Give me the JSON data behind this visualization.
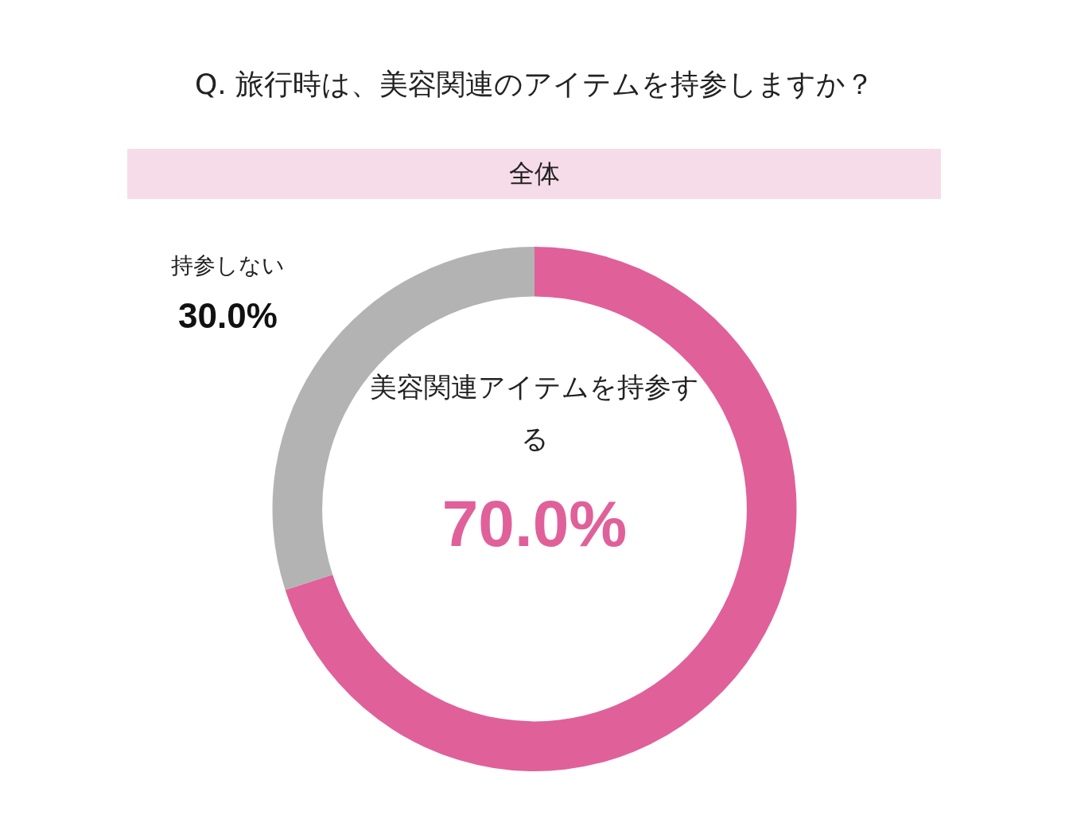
{
  "chart_data": {
    "type": "donut",
    "title": "Q. 旅行時は、美容関連のアイテムを持参しますか？",
    "subtitle": "全体",
    "categories": [
      "美容関連アイテムを持参する",
      "持参しない"
    ],
    "values": [
      70,
      30
    ],
    "colors": [
      "#e0609a",
      "#b3b3b3"
    ],
    "value_labels": [
      "70.0%",
      "30.0%"
    ],
    "legend": false
  }
}
